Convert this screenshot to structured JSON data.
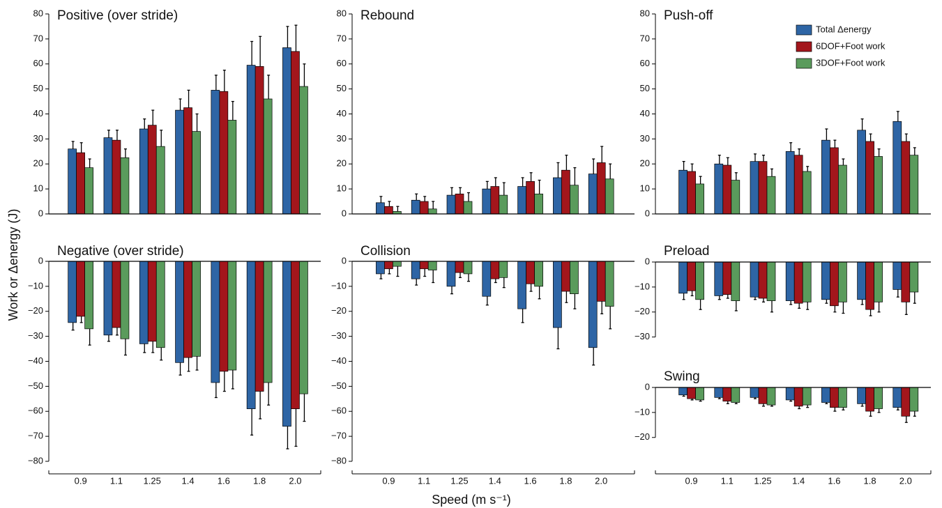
{
  "ylabel": "Work or Δenergy (J)",
  "xlabel": "Speed (m s⁻¹)",
  "chart_data": [
    {
      "type": "bar",
      "title": "Positive (over stride)",
      "ylim": [
        0,
        80
      ],
      "yticks": [
        0,
        10,
        20,
        30,
        40,
        50,
        60,
        70,
        80
      ],
      "series": [
        {
          "color": "#2e65a5",
          "values": [
            26,
            30.5,
            34,
            41.5,
            49.5,
            59.5,
            66.5
          ],
          "errors": [
            3,
            3,
            4,
            4.5,
            6,
            9.5,
            8.5
          ]
        },
        {
          "color": "#a3161c",
          "values": [
            24.5,
            29.5,
            35.5,
            42.5,
            49,
            59,
            65
          ],
          "errors": [
            4,
            4,
            6,
            7,
            8.5,
            12,
            10.5
          ]
        },
        {
          "color": "#5a9b5c",
          "values": [
            18.5,
            22.5,
            27,
            33,
            37.5,
            46,
            51
          ],
          "errors": [
            3.5,
            3.5,
            6.5,
            7,
            7.5,
            9.5,
            9
          ]
        }
      ]
    },
    {
      "type": "bar",
      "title": "Rebound",
      "ylim": [
        0,
        80
      ],
      "yticks": [
        0,
        10,
        20,
        30,
        40,
        50,
        60,
        70,
        80
      ],
      "series": [
        {
          "color": "#2e65a5",
          "values": [
            4.5,
            5.5,
            7.5,
            10,
            11,
            14.5,
            16
          ],
          "errors": [
            2.5,
            2.5,
            3,
            3,
            3.5,
            6,
            6
          ]
        },
        {
          "color": "#a3161c",
          "values": [
            3,
            5,
            8,
            11,
            13,
            17.5,
            20.5
          ],
          "errors": [
            2,
            2,
            2.5,
            3.5,
            3.5,
            6,
            6.5
          ]
        },
        {
          "color": "#5a9b5c",
          "values": [
            1,
            2,
            5,
            7.5,
            8,
            11.5,
            14
          ],
          "errors": [
            2,
            3,
            3.5,
            5,
            5.5,
            7,
            6
          ]
        }
      ]
    },
    {
      "type": "bar",
      "title": "Push-off",
      "ylim": [
        0,
        80
      ],
      "yticks": [
        0,
        10,
        20,
        30,
        40,
        50,
        60,
        70,
        80
      ],
      "series": [
        {
          "name": "Total Δenergy",
          "color": "#2e65a5",
          "values": [
            17.5,
            20,
            21,
            25,
            29.5,
            33.5,
            37
          ],
          "errors": [
            3.5,
            3.5,
            3,
            3.5,
            4.5,
            4.5,
            4
          ]
        },
        {
          "name": "6DOF+Foot work",
          "color": "#a3161c",
          "values": [
            17,
            19.5,
            21,
            23.5,
            26.5,
            29,
            29
          ],
          "errors": [
            3,
            3,
            2.5,
            2.5,
            3,
            3,
            3
          ]
        },
        {
          "name": "3DOF+Foot work",
          "color": "#5a9b5c",
          "values": [
            12,
            13.5,
            15,
            17,
            19.5,
            23,
            23.5
          ],
          "errors": [
            3,
            3,
            3,
            2,
            2.5,
            3,
            3
          ]
        }
      ]
    },
    {
      "type": "bar",
      "title": "Negative (over stride)",
      "categories": [
        "0.9",
        "1.1",
        "1.25",
        "1.4",
        "1.6",
        "1.8",
        "2.0"
      ],
      "ylim": [
        -80,
        0
      ],
      "yticks": [
        0,
        {
          "value": -10,
          "label": "−10"
        },
        {
          "value": -20,
          "label": "−20"
        },
        {
          "value": -30,
          "label": "−30"
        },
        {
          "value": -40,
          "label": "−40"
        },
        {
          "value": -50,
          "label": "−50"
        },
        {
          "value": -60,
          "label": "−60"
        },
        {
          "value": -70,
          "label": "−70"
        },
        {
          "value": -80,
          "label": "−80"
        }
      ],
      "series": [
        {
          "color": "#2e65a5",
          "values": [
            -24.5,
            -29.5,
            -33,
            -40.5,
            -48.5,
            -59,
            -66
          ],
          "errors": [
            3,
            2.5,
            3.5,
            5,
            6,
            10.5,
            9
          ]
        },
        {
          "color": "#a3161c",
          "values": [
            -22,
            -26.5,
            -32,
            -38.5,
            -44,
            -52,
            -59
          ],
          "errors": [
            2.5,
            3,
            4.5,
            5.5,
            8,
            11,
            15
          ]
        },
        {
          "color": "#5a9b5c",
          "values": [
            -27,
            -31,
            -34.5,
            -38,
            -43.5,
            -48.5,
            -53
          ],
          "errors": [
            6.5,
            6.5,
            5,
            5.5,
            7.5,
            9,
            11
          ]
        }
      ]
    },
    {
      "type": "bar",
      "title": "Collision",
      "categories": [
        "0.9",
        "1.1",
        "1.25",
        "1.4",
        "1.6",
        "1.8",
        "2.0"
      ],
      "ylim": [
        -80,
        0
      ],
      "yticks": [
        0,
        {
          "value": -10,
          "label": "−10"
        },
        {
          "value": -20,
          "label": "−20"
        },
        {
          "value": -30,
          "label": "−30"
        },
        {
          "value": -40,
          "label": "−40"
        },
        {
          "value": -50,
          "label": "−50"
        },
        {
          "value": -60,
          "label": "−60"
        },
        {
          "value": -70,
          "label": "−70"
        },
        {
          "value": -80,
          "label": "−80"
        }
      ],
      "series": [
        {
          "color": "#2e65a5",
          "values": [
            -5,
            -7,
            -10,
            -14,
            -19,
            -26.5,
            -34.5
          ],
          "errors": [
            2,
            2.5,
            3,
            3.5,
            5.5,
            8.5,
            7
          ]
        },
        {
          "color": "#a3161c",
          "values": [
            -3,
            -3,
            -4.5,
            -7,
            -9,
            -12,
            -16
          ],
          "errors": [
            2,
            3,
            2,
            1.5,
            3,
            4.5,
            5
          ]
        },
        {
          "color": "#5a9b5c",
          "values": [
            -2,
            -3.5,
            -5,
            -6.5,
            -10,
            -13,
            -18
          ],
          "errors": [
            4,
            5,
            3,
            4,
            5,
            6,
            9
          ]
        }
      ]
    },
    {
      "type": "bar",
      "title": "Preload",
      "ylim": [
        -30,
        0
      ],
      "yticks": [
        0,
        {
          "value": -10,
          "label": "−10"
        },
        {
          "value": -20,
          "label": "−20"
        },
        {
          "value": -30,
          "label": "−30"
        }
      ],
      "series": [
        {
          "color": "#2e65a5",
          "values": [
            -12.5,
            -13.5,
            -14,
            -15.5,
            -15,
            -15,
            -11
          ],
          "errors": [
            2.5,
            1.5,
            1,
            1.5,
            1.5,
            2,
            3
          ]
        },
        {
          "color": "#a3161c",
          "values": [
            -11.5,
            -13,
            -14.5,
            -16.5,
            -17.5,
            -19,
            -16
          ],
          "errors": [
            2,
            1.5,
            1.5,
            2,
            2.5,
            2.5,
            5
          ]
        },
        {
          "color": "#5a9b5c",
          "values": [
            -15,
            -15.5,
            -15.5,
            -16,
            -16,
            -16,
            -12
          ],
          "errors": [
            4,
            4,
            4.5,
            3,
            4.5,
            4,
            4.5
          ]
        }
      ]
    },
    {
      "type": "bar",
      "title": "Swing",
      "categories": [
        "0.9",
        "1.1",
        "1.25",
        "1.4",
        "1.6",
        "1.8",
        "2.0"
      ],
      "ylim": [
        -20,
        0
      ],
      "yticks": [
        0,
        {
          "value": -10,
          "label": "−10"
        },
        {
          "value": -20,
          "label": "−20"
        }
      ],
      "series": [
        {
          "color": "#2e65a5",
          "values": [
            -3,
            -4,
            -4,
            -5,
            -6,
            -6.5,
            -8
          ],
          "errors": [
            0.5,
            0.5,
            0.5,
            0.5,
            0.5,
            1,
            1
          ]
        },
        {
          "color": "#a3161c",
          "values": [
            -4.5,
            -5.5,
            -6.5,
            -7.5,
            -8,
            -9.5,
            -11.5
          ],
          "errors": [
            0.5,
            1,
            1,
            1,
            1.5,
            2,
            2.5
          ]
        },
        {
          "color": "#5a9b5c",
          "values": [
            -5,
            -6,
            -7,
            -7,
            -8,
            -8.5,
            -9.5
          ],
          "errors": [
            0.5,
            0.5,
            0.5,
            1,
            1,
            1.5,
            2
          ]
        }
      ]
    }
  ]
}
